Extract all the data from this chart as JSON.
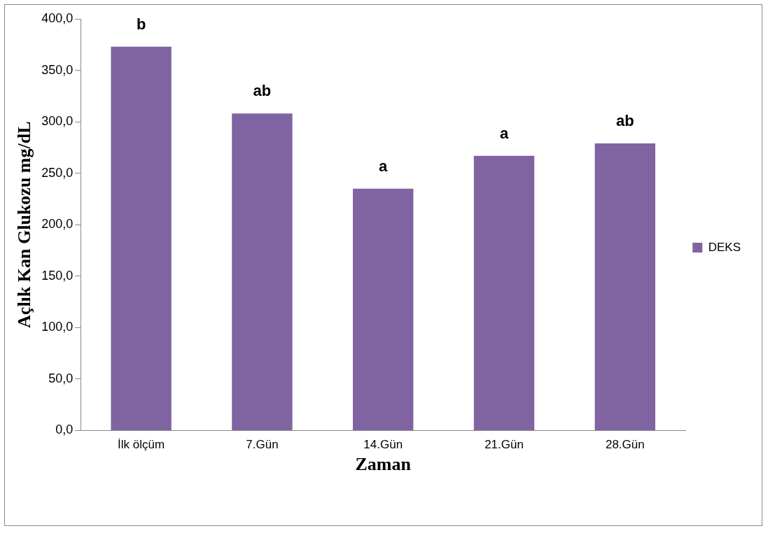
{
  "chart_data": {
    "type": "bar",
    "xlabel": "Zaman",
    "ylabel": "Açlık Kan Glukozu mg/dL",
    "categories": [
      "İlk ölçüm",
      "7.Gün",
      "14.Gün",
      "21.Gün",
      "28.Gün"
    ],
    "series": [
      {
        "name": "DEKS",
        "color": "#8064a2",
        "values": [
          373,
          308,
          235,
          267,
          279
        ]
      }
    ],
    "ylim": [
      0,
      400
    ],
    "yticks": [
      {
        "value": 0,
        "label": "0,0"
      },
      {
        "value": 50,
        "label": "50,0"
      },
      {
        "value": 100,
        "label": "100,0"
      },
      {
        "value": 150,
        "label": "150,0"
      },
      {
        "value": 200,
        "label": "200,0"
      },
      {
        "value": 250,
        "label": "250,0"
      },
      {
        "value": 300,
        "label": "300,0"
      },
      {
        "value": 350,
        "label": "350,0"
      },
      {
        "value": 400,
        "label": "400,0"
      }
    ],
    "annotations": [
      {
        "text": "b",
        "x": "İlk ölçüm",
        "y": 373
      },
      {
        "text": "ab",
        "x": "7.Gün",
        "y": 308
      },
      {
        "text": "a",
        "x": "14.Gün",
        "y": 235
      },
      {
        "text": "a",
        "x": "21.Gün",
        "y": 267
      },
      {
        "text": "ab",
        "x": "28.Gün",
        "y": 279
      }
    ],
    "grid": false,
    "legend": "right"
  }
}
